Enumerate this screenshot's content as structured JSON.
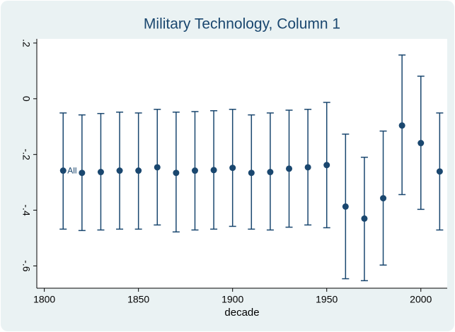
{
  "chart_data": {
    "type": "errorbar",
    "title": "Military Technology, Column 1",
    "xlabel": "decade",
    "annotation": "All",
    "x": [
      1810,
      1820,
      1830,
      1840,
      1850,
      1860,
      1870,
      1880,
      1890,
      1900,
      1910,
      1920,
      1930,
      1940,
      1950,
      1960,
      1970,
      1980,
      1990,
      2000,
      2010
    ],
    "series": [
      {
        "color": "#1a476f",
        "values": [
          -0.258,
          -0.266,
          -0.263,
          -0.258,
          -0.258,
          -0.246,
          -0.266,
          -0.258,
          -0.256,
          -0.248,
          -0.266,
          -0.263,
          -0.251,
          -0.246,
          -0.238,
          -0.387,
          -0.43,
          -0.357,
          -0.096,
          -0.159,
          -0.261
        ],
        "lower": [
          -0.468,
          -0.473,
          -0.471,
          -0.468,
          -0.468,
          -0.453,
          -0.478,
          -0.471,
          -0.468,
          -0.458,
          -0.468,
          -0.471,
          -0.461,
          -0.453,
          -0.463,
          -0.646,
          -0.653,
          -0.597,
          -0.344,
          -0.397,
          -0.471
        ],
        "upper": [
          -0.051,
          -0.058,
          -0.053,
          -0.048,
          -0.051,
          -0.038,
          -0.048,
          -0.046,
          -0.043,
          -0.038,
          -0.058,
          -0.051,
          -0.041,
          -0.038,
          -0.013,
          -0.127,
          -0.21,
          -0.116,
          0.157,
          0.081,
          -0.051
        ]
      }
    ],
    "xlim": [
      1796,
      2014
    ],
    "ylim": [
      -0.68,
      0.215
    ],
    "xticks": [
      1800,
      1850,
      1900,
      1950,
      2000
    ],
    "yticks": [
      {
        "value": -0.6,
        "label": "-.6"
      },
      {
        "value": -0.4,
        "label": "-.4"
      },
      {
        "value": -0.2,
        "label": "-.2"
      },
      0,
      {
        "value": 0.2,
        "label": ".2"
      }
    ],
    "grid": false
  }
}
